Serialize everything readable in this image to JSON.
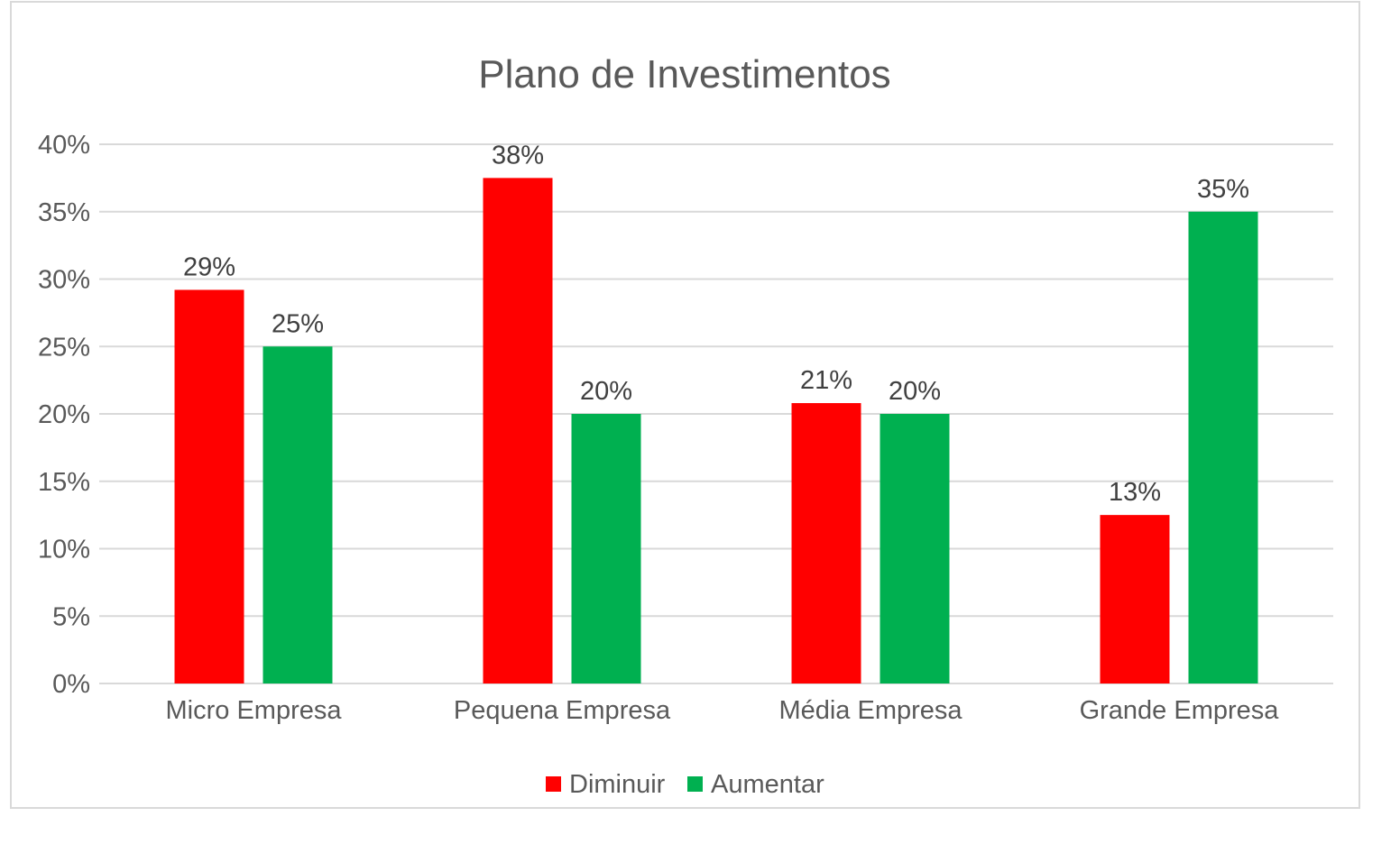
{
  "chart_data": {
    "type": "bar",
    "title": "Plano de Investimentos",
    "xlabel": "",
    "ylabel": "",
    "categories": [
      "Micro Empresa",
      "Pequena Empresa",
      "Média Empresa",
      "Grande Empresa"
    ],
    "series": [
      {
        "name": "Diminuir",
        "color": "#ff0000",
        "values": [
          29.2,
          37.5,
          20.8,
          12.5
        ],
        "labels": [
          "29%",
          "38%",
          "21%",
          "13%"
        ]
      },
      {
        "name": "Aumentar",
        "color": "#00b050",
        "values": [
          25,
          20,
          20,
          35
        ],
        "labels": [
          "25%",
          "20%",
          "20%",
          "35%"
        ]
      }
    ],
    "ylim": [
      0,
      40
    ],
    "yticks": [
      "0%",
      "5%",
      "10%",
      "15%",
      "20%",
      "25%",
      "30%",
      "35%",
      "40%"
    ],
    "grid": true,
    "legend_position": "bottom"
  }
}
